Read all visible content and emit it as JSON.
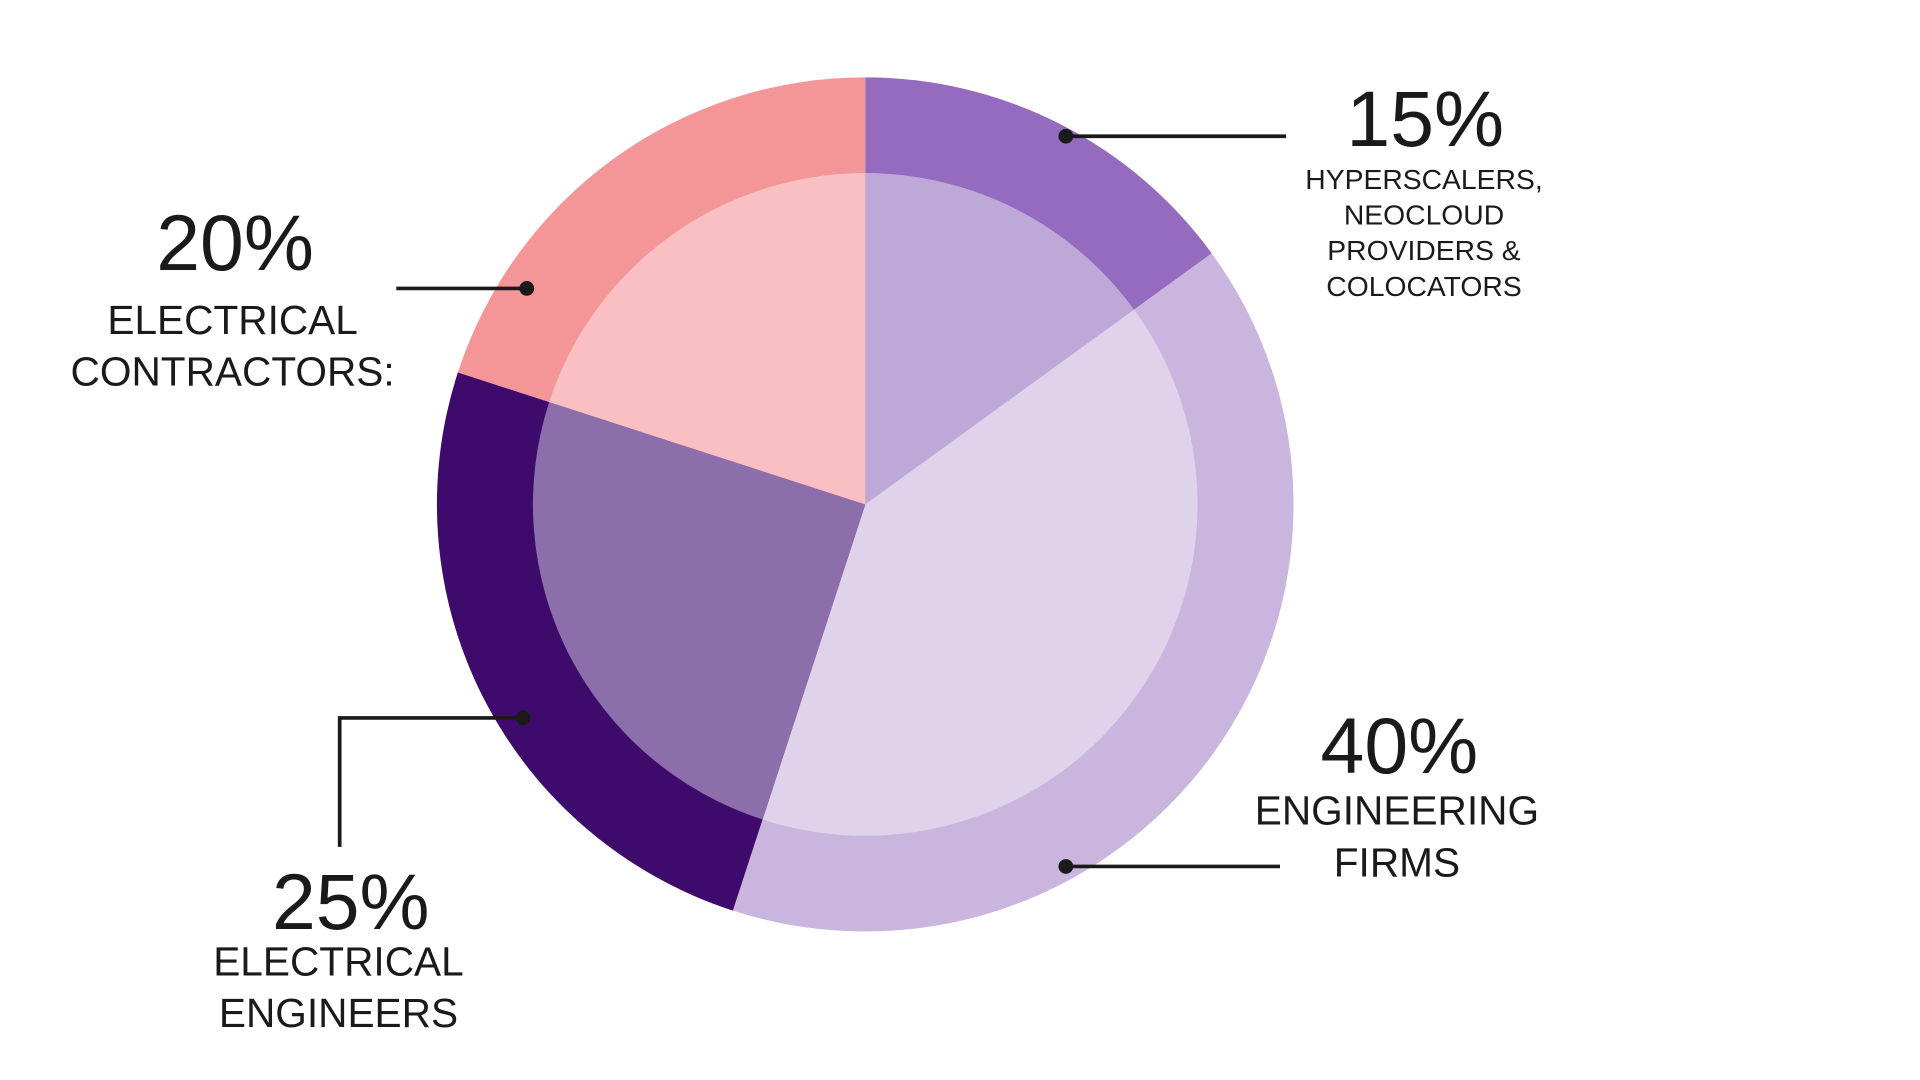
{
  "chart_data": {
    "type": "pie",
    "title": "",
    "start": "top",
    "direction": "clockwise",
    "slices": [
      {
        "label_lines": [
          "HYPERSCALERS,",
          "NEOCLOUD",
          "PROVIDERS &",
          "COLOCATORS"
        ],
        "value": 15,
        "value_label": "15%",
        "outer_color": "#946bbf",
        "inner_color": "#bea8d8"
      },
      {
        "label_lines": [
          "ENGINEERING",
          "FIRMS"
        ],
        "value": 40,
        "value_label": "40%",
        "outer_color": "#c9b5de",
        "inner_color": "#dfd3ec"
      },
      {
        "label_lines": [
          "ELECTRICAL",
          "ENGINEERS"
        ],
        "value": 25,
        "value_label": "25%",
        "outer_color": "#3e0a6b",
        "inner_color": "#8b6eaa"
      },
      {
        "label_lines": [
          "ELECTRICAL",
          "CONTRACTORS:"
        ],
        "value": 20,
        "value_label": "20%",
        "outer_color": "#f49597",
        "inner_color": "#f9bfc2"
      }
    ]
  }
}
